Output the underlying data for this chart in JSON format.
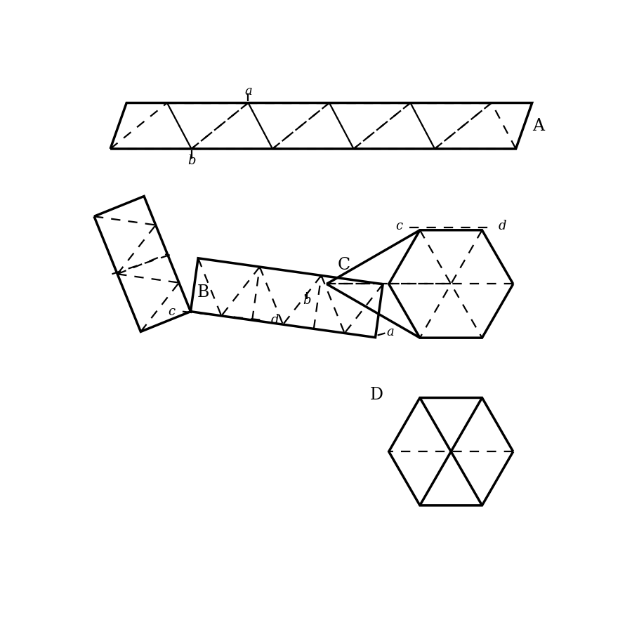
{
  "bg_color": "#ffffff",
  "line_color": "#000000",
  "dashed_color": "#000000",
  "label_A": "A",
  "label_B": "B",
  "label_C": "C",
  "label_D": "D",
  "label_a": "a",
  "label_b": "b",
  "label_c": "c",
  "label_d": "d",
  "solid_lw": 2.5,
  "dashed_lw": 1.6,
  "font_size_label": 13,
  "font_size_letter": 17,
  "dash_style": [
    6,
    5
  ]
}
